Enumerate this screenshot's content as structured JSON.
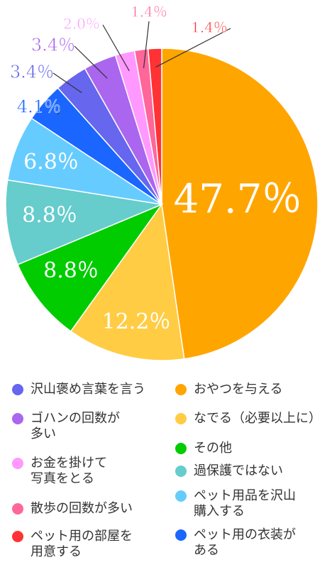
{
  "chart_data": {
    "type": "pie",
    "categories": [
      "おやつを与える",
      "なでる（必要以上に）",
      "その他",
      "過保護ではない",
      "ペット用品を沢山\n購入する",
      "ペット用の衣装が\nある",
      "沢山褒め言葉を言う",
      "ゴハンの回数が\n多い",
      "お金を掛けて\n写真をとる",
      "散歩の回数が多い",
      "ペット用の部屋を\n用意する"
    ],
    "values": [
      47.7,
      12.2,
      8.8,
      8.8,
      6.8,
      4.1,
      3.4,
      3.4,
      2.0,
      1.4,
      1.4
    ],
    "value_labels": [
      "47.7％",
      "12.2％",
      "8.8％",
      "8.8％",
      "6.8％",
      "4.1％",
      "3.4％",
      "3.4％",
      "2.0％",
      "1.4％",
      "1.4％"
    ],
    "colors": [
      "#ffa500",
      "#ffcc44",
      "#00cc00",
      "#66cccc",
      "#66ccff",
      "#1a66ff",
      "#6666ee",
      "#aa66ee",
      "#ff99ff",
      "#ff6699",
      "#ff3333"
    ],
    "legend_order": [
      6,
      7,
      8,
      9,
      10,
      0,
      1,
      2,
      3,
      4,
      5
    ]
  }
}
